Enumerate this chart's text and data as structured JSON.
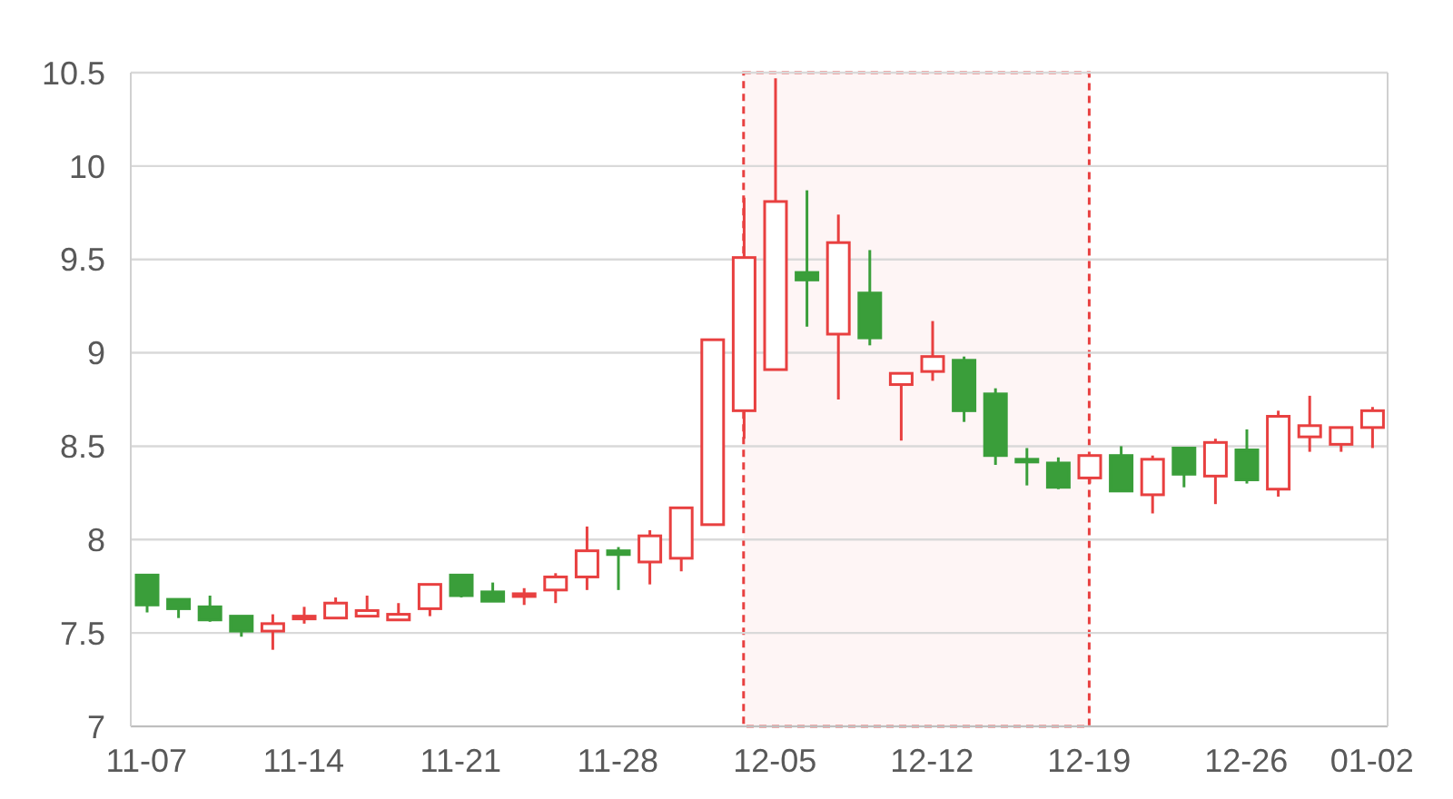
{
  "chart_data": {
    "type": "candlestick",
    "categories": [
      "11-07",
      null,
      null,
      null,
      null,
      "11-14",
      null,
      null,
      null,
      null,
      "11-21",
      null,
      null,
      null,
      null,
      "11-28",
      null,
      null,
      null,
      null,
      "12-05",
      null,
      null,
      null,
      null,
      "12-12",
      null,
      null,
      null,
      null,
      "12-19",
      null,
      null,
      null,
      null,
      "12-26",
      null,
      null,
      null,
      "01-02"
    ],
    "ohlc": [
      [
        7.81,
        7.81,
        7.61,
        7.65
      ],
      [
        7.68,
        7.68,
        7.58,
        7.63
      ],
      [
        7.64,
        7.7,
        7.56,
        7.57
      ],
      [
        7.59,
        7.59,
        7.48,
        7.51
      ],
      [
        7.51,
        7.6,
        7.41,
        7.55
      ],
      [
        7.58,
        7.64,
        7.55,
        7.59
      ],
      [
        7.58,
        7.69,
        7.58,
        7.66
      ],
      [
        7.59,
        7.7,
        7.59,
        7.62
      ],
      [
        7.57,
        7.66,
        7.57,
        7.6
      ],
      [
        7.63,
        7.76,
        7.59,
        7.76
      ],
      [
        7.81,
        7.81,
        7.69,
        7.7
      ],
      [
        7.72,
        7.77,
        7.67,
        7.67
      ],
      [
        7.7,
        7.74,
        7.65,
        7.71
      ],
      [
        7.73,
        7.82,
        7.66,
        7.8
      ],
      [
        7.8,
        8.07,
        7.73,
        7.94
      ],
      [
        7.94,
        7.96,
        7.73,
        7.92
      ],
      [
        7.88,
        8.05,
        7.76,
        8.02
      ],
      [
        7.9,
        8.17,
        7.83,
        8.17
      ],
      [
        8.08,
        9.07,
        8.08,
        9.07
      ],
      [
        8.69,
        9.83,
        8.54,
        9.51
      ],
      [
        8.91,
        10.47,
        8.91,
        9.81
      ],
      [
        9.43,
        9.87,
        9.14,
        9.39
      ],
      [
        9.1,
        9.74,
        8.75,
        9.59
      ],
      [
        9.32,
        9.55,
        9.04,
        9.08
      ],
      [
        8.83,
        8.89,
        8.53,
        8.89
      ],
      [
        8.9,
        9.17,
        8.85,
        8.98
      ],
      [
        8.96,
        8.98,
        8.63,
        8.69
      ],
      [
        8.78,
        8.81,
        8.4,
        8.45
      ],
      [
        8.43,
        8.49,
        8.29,
        8.42
      ],
      [
        8.41,
        8.44,
        8.27,
        8.28
      ],
      [
        8.33,
        8.45,
        8.3,
        8.45
      ],
      [
        8.45,
        8.5,
        8.26,
        8.26
      ],
      [
        8.24,
        8.45,
        8.14,
        8.43
      ],
      [
        8.49,
        8.49,
        8.28,
        8.35
      ],
      [
        8.34,
        8.54,
        8.19,
        8.52
      ],
      [
        8.48,
        8.59,
        8.3,
        8.32
      ],
      [
        8.27,
        8.69,
        8.23,
        8.66
      ],
      [
        8.55,
        8.77,
        8.47,
        8.61
      ],
      [
        8.51,
        8.6,
        8.47,
        8.6
      ],
      [
        8.6,
        8.71,
        8.49,
        8.69
      ]
    ],
    "colors": [
      "#3a9e3a",
      "#3a9e3a",
      "#3a9e3a",
      "#3a9e3a",
      "#e84040",
      "#e84040",
      "#e84040",
      "#e84040",
      "#e84040",
      "#e84040",
      "#3a9e3a",
      "#3a9e3a",
      "#e84040",
      "#e84040",
      "#e84040",
      "#3a9e3a",
      "#e84040",
      "#e84040",
      "#e84040",
      "#e84040",
      "#e84040",
      "#3a9e3a",
      "#e84040",
      "#3a9e3a",
      "#e84040",
      "#e84040",
      "#3a9e3a",
      "#3a9e3a",
      "#3a9e3a",
      "#3a9e3a",
      "#e84040",
      "#3a9e3a",
      "#e84040",
      "#3a9e3a",
      "#e84040",
      "#3a9e3a",
      "#e84040",
      "#e84040",
      "#e84040",
      "#e84040"
    ],
    "ylim": [
      7,
      10.5
    ],
    "yticks": [
      7,
      7.5,
      8,
      8.5,
      9,
      9.5,
      10,
      10.5
    ],
    "grid": "y"
  }
}
